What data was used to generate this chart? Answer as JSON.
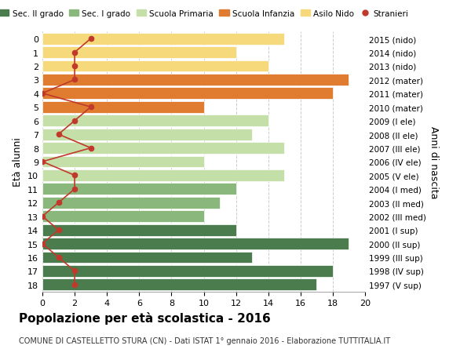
{
  "ages": [
    18,
    17,
    16,
    15,
    14,
    13,
    12,
    11,
    10,
    9,
    8,
    7,
    6,
    5,
    4,
    3,
    2,
    1,
    0
  ],
  "right_labels": [
    "1997 (V sup)",
    "1998 (IV sup)",
    "1999 (III sup)",
    "2000 (II sup)",
    "2001 (I sup)",
    "2002 (III med)",
    "2003 (II med)",
    "2004 (I med)",
    "2005 (V ele)",
    "2006 (IV ele)",
    "2007 (III ele)",
    "2008 (II ele)",
    "2009 (I ele)",
    "2010 (mater)",
    "2011 (mater)",
    "2012 (mater)",
    "2013 (nido)",
    "2014 (nido)",
    "2015 (nido)"
  ],
  "bar_values": [
    17,
    18,
    13,
    19,
    12,
    10,
    11,
    12,
    15,
    10,
    15,
    13,
    14,
    10,
    18,
    19,
    14,
    12,
    15
  ],
  "bar_colors": [
    "#4a7c4e",
    "#4a7c4e",
    "#4a7c4e",
    "#4a7c4e",
    "#4a7c4e",
    "#8ab87c",
    "#8ab87c",
    "#8ab87c",
    "#c5dfa8",
    "#c5dfa8",
    "#c5dfa8",
    "#c5dfa8",
    "#c5dfa8",
    "#e07c30",
    "#e07c30",
    "#e07c30",
    "#f5d97a",
    "#f5d97a",
    "#f5d97a"
  ],
  "stranieri_values": [
    2,
    2,
    1,
    0,
    1,
    0,
    1,
    2,
    2,
    0,
    3,
    1,
    2,
    3,
    0,
    2,
    2,
    2,
    3
  ],
  "legend_labels": [
    "Sec. II grado",
    "Sec. I grado",
    "Scuola Primaria",
    "Scuola Infanzia",
    "Asilo Nido",
    "Stranieri"
  ],
  "legend_colors": [
    "#4a7c4e",
    "#8ab87c",
    "#c5dfa8",
    "#e07c30",
    "#f5d97a",
    "#c0392b"
  ],
  "ylabel_left": "Età alunni",
  "ylabel_right": "Anni di nascita",
  "title": "Popolazione per età scolastica - 2016",
  "subtitle": "COMUNE DI CASTELLETTO STURA (CN) - Dati ISTAT 1° gennaio 2016 - Elaborazione TUTTITALIA.IT",
  "xlim": [
    0,
    20
  ],
  "background_color": "#ffffff",
  "grid_color": "#cccccc"
}
